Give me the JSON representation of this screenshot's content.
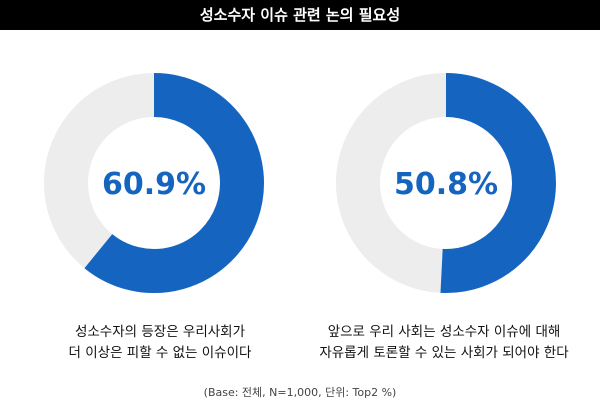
{
  "header": {
    "title": "성소수자 이슈 관련 논의 필요성"
  },
  "colors": {
    "accent": "#1565c0",
    "remainder": "#ededed"
  },
  "chart_data": [
    {
      "type": "pie",
      "value": 60.9,
      "label": "60.9%",
      "caption_lines": [
        "성소수자의 등장은 우리사회가",
        "더 이상은 피할 수 없는 이슈이다"
      ]
    },
    {
      "type": "pie",
      "value": 50.8,
      "label": "50.8%",
      "caption_lines": [
        "앞으로 우리 사회는 성소수자 이슈에 대해",
        "자유롭게 토론할 수 있는 사회가 되어야 한다"
      ]
    }
  ],
  "footnote": "(Base: 전체, N=1,000, 단위: Top2 %)"
}
